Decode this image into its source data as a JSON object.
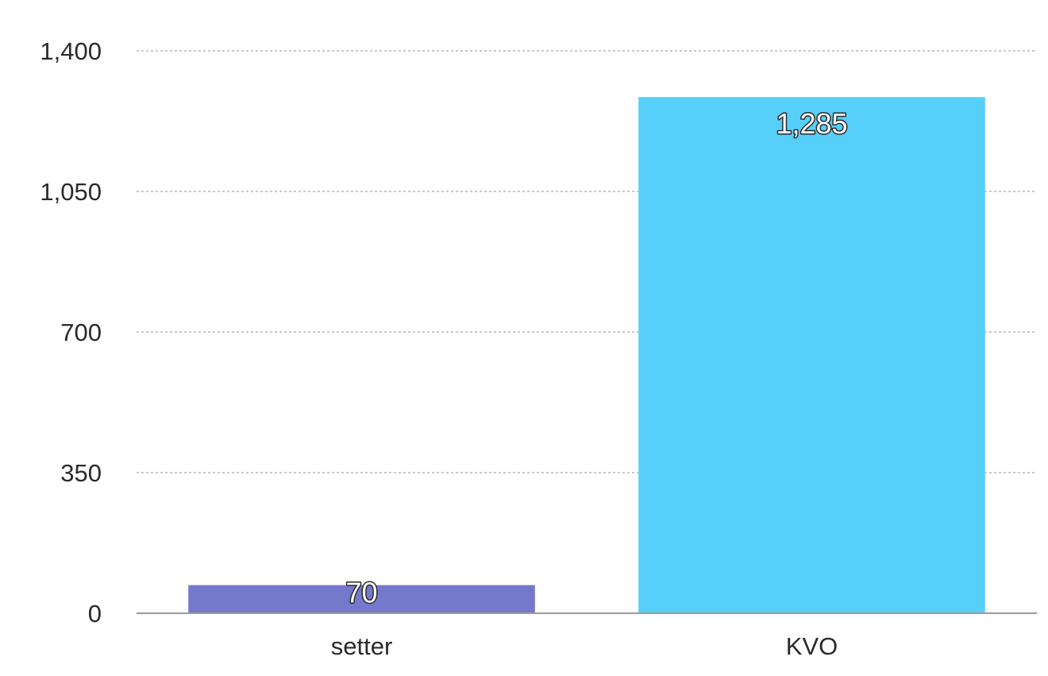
{
  "chart_data": {
    "type": "bar",
    "title": "",
    "xlabel": "",
    "ylabel": "",
    "categories": [
      "setter",
      "KVO"
    ],
    "values": [
      70,
      1285
    ],
    "data_labels": [
      "70",
      "1,285"
    ],
    "colors": [
      "#7479cb",
      "#57cffb"
    ],
    "ylim": [
      0,
      1400
    ],
    "yticks": [
      0,
      350,
      700,
      1050,
      1400
    ],
    "ytick_labels": [
      "0",
      "350",
      "700",
      "1,050",
      "1,400"
    ],
    "grid": true,
    "grid_style": "dotted",
    "legend": "none"
  }
}
